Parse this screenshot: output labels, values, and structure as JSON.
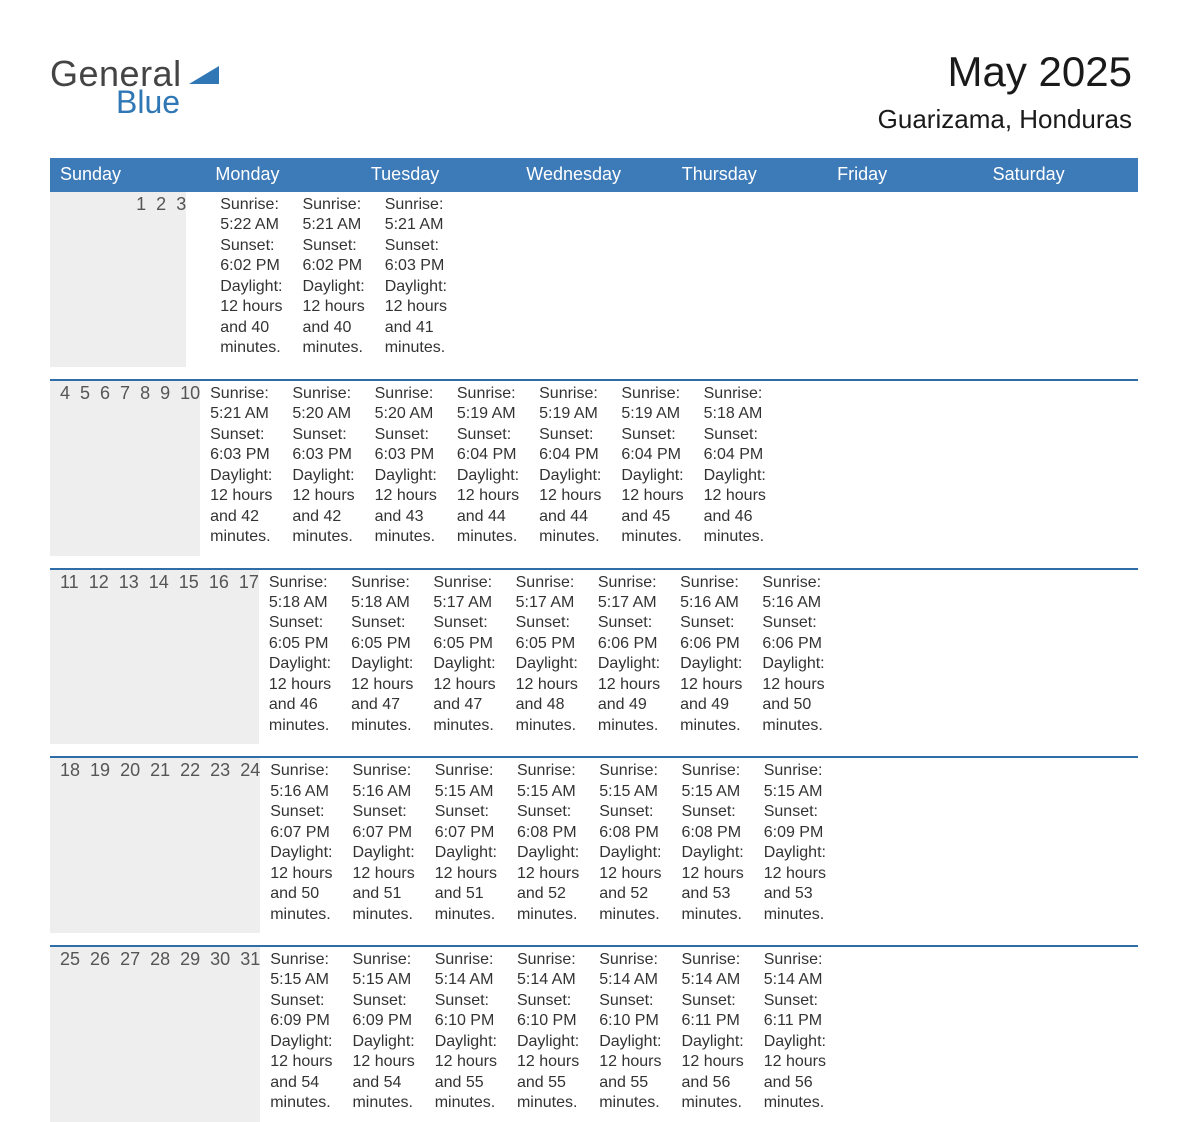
{
  "logo": {
    "word1": "General",
    "word2": "Blue"
  },
  "title": "May 2025",
  "location": "Guarizama, Honduras",
  "colors": {
    "header_blue": "#3d7ab8",
    "rule_blue": "#2f6da8",
    "daynum_bg": "#eeeeee",
    "text_dark": "#333333",
    "logo_blue": "#2f77b5",
    "page_bg": "#ffffff"
  },
  "typography": {
    "title_fontsize_pt": 32,
    "location_fontsize_pt": 20,
    "dow_fontsize_pt": 14,
    "daynum_fontsize_pt": 14,
    "detail_fontsize_pt": 12,
    "font_family": "Arial"
  },
  "calendar": {
    "columns": 7,
    "row_rule_color": "#2f6da8",
    "day_header_bg": "#3d7ab8",
    "day_header_text_color": "#ffffff",
    "daynum_bg": "#eeeeee"
  },
  "days_of_week": [
    "Sunday",
    "Monday",
    "Tuesday",
    "Wednesday",
    "Thursday",
    "Friday",
    "Saturday"
  ],
  "labels": {
    "sunrise": "Sunrise",
    "sunset": "Sunset",
    "daylight": "Daylight"
  },
  "weeks": [
    [
      null,
      null,
      null,
      null,
      {
        "n": "1",
        "sunrise": "5:22 AM",
        "sunset": "6:02 PM",
        "daylight": "12 hours and 40 minutes."
      },
      {
        "n": "2",
        "sunrise": "5:21 AM",
        "sunset": "6:02 PM",
        "daylight": "12 hours and 40 minutes."
      },
      {
        "n": "3",
        "sunrise": "5:21 AM",
        "sunset": "6:03 PM",
        "daylight": "12 hours and 41 minutes."
      }
    ],
    [
      {
        "n": "4",
        "sunrise": "5:21 AM",
        "sunset": "6:03 PM",
        "daylight": "12 hours and 42 minutes."
      },
      {
        "n": "5",
        "sunrise": "5:20 AM",
        "sunset": "6:03 PM",
        "daylight": "12 hours and 42 minutes."
      },
      {
        "n": "6",
        "sunrise": "5:20 AM",
        "sunset": "6:03 PM",
        "daylight": "12 hours and 43 minutes."
      },
      {
        "n": "7",
        "sunrise": "5:19 AM",
        "sunset": "6:04 PM",
        "daylight": "12 hours and 44 minutes."
      },
      {
        "n": "8",
        "sunrise": "5:19 AM",
        "sunset": "6:04 PM",
        "daylight": "12 hours and 44 minutes."
      },
      {
        "n": "9",
        "sunrise": "5:19 AM",
        "sunset": "6:04 PM",
        "daylight": "12 hours and 45 minutes."
      },
      {
        "n": "10",
        "sunrise": "5:18 AM",
        "sunset": "6:04 PM",
        "daylight": "12 hours and 46 minutes."
      }
    ],
    [
      {
        "n": "11",
        "sunrise": "5:18 AM",
        "sunset": "6:05 PM",
        "daylight": "12 hours and 46 minutes."
      },
      {
        "n": "12",
        "sunrise": "5:18 AM",
        "sunset": "6:05 PM",
        "daylight": "12 hours and 47 minutes."
      },
      {
        "n": "13",
        "sunrise": "5:17 AM",
        "sunset": "6:05 PM",
        "daylight": "12 hours and 47 minutes."
      },
      {
        "n": "14",
        "sunrise": "5:17 AM",
        "sunset": "6:05 PM",
        "daylight": "12 hours and 48 minutes."
      },
      {
        "n": "15",
        "sunrise": "5:17 AM",
        "sunset": "6:06 PM",
        "daylight": "12 hours and 49 minutes."
      },
      {
        "n": "16",
        "sunrise": "5:16 AM",
        "sunset": "6:06 PM",
        "daylight": "12 hours and 49 minutes."
      },
      {
        "n": "17",
        "sunrise": "5:16 AM",
        "sunset": "6:06 PM",
        "daylight": "12 hours and 50 minutes."
      }
    ],
    [
      {
        "n": "18",
        "sunrise": "5:16 AM",
        "sunset": "6:07 PM",
        "daylight": "12 hours and 50 minutes."
      },
      {
        "n": "19",
        "sunrise": "5:16 AM",
        "sunset": "6:07 PM",
        "daylight": "12 hours and 51 minutes."
      },
      {
        "n": "20",
        "sunrise": "5:15 AM",
        "sunset": "6:07 PM",
        "daylight": "12 hours and 51 minutes."
      },
      {
        "n": "21",
        "sunrise": "5:15 AM",
        "sunset": "6:08 PM",
        "daylight": "12 hours and 52 minutes."
      },
      {
        "n": "22",
        "sunrise": "5:15 AM",
        "sunset": "6:08 PM",
        "daylight": "12 hours and 52 minutes."
      },
      {
        "n": "23",
        "sunrise": "5:15 AM",
        "sunset": "6:08 PM",
        "daylight": "12 hours and 53 minutes."
      },
      {
        "n": "24",
        "sunrise": "5:15 AM",
        "sunset": "6:09 PM",
        "daylight": "12 hours and 53 minutes."
      }
    ],
    [
      {
        "n": "25",
        "sunrise": "5:15 AM",
        "sunset": "6:09 PM",
        "daylight": "12 hours and 54 minutes."
      },
      {
        "n": "26",
        "sunrise": "5:15 AM",
        "sunset": "6:09 PM",
        "daylight": "12 hours and 54 minutes."
      },
      {
        "n": "27",
        "sunrise": "5:14 AM",
        "sunset": "6:10 PM",
        "daylight": "12 hours and 55 minutes."
      },
      {
        "n": "28",
        "sunrise": "5:14 AM",
        "sunset": "6:10 PM",
        "daylight": "12 hours and 55 minutes."
      },
      {
        "n": "29",
        "sunrise": "5:14 AM",
        "sunset": "6:10 PM",
        "daylight": "12 hours and 55 minutes."
      },
      {
        "n": "30",
        "sunrise": "5:14 AM",
        "sunset": "6:11 PM",
        "daylight": "12 hours and 56 minutes."
      },
      {
        "n": "31",
        "sunrise": "5:14 AM",
        "sunset": "6:11 PM",
        "daylight": "12 hours and 56 minutes."
      }
    ]
  ]
}
